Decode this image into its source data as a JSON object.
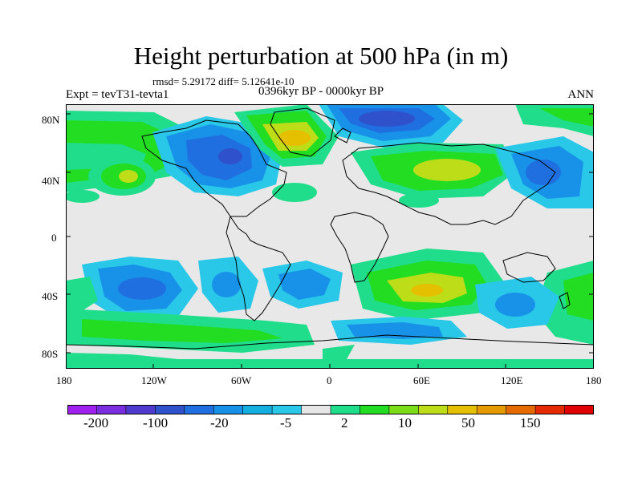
{
  "title": "Height perturbation at 500 hPa (in m)",
  "stats_line": "rmsd= 5.29172 diff= 5.12641e-10",
  "left_label": "Expt = tevT31-tevta1",
  "center_label": "0396kyr BP - 0000kyr BP",
  "right_label": "ANN",
  "map": {
    "projection": "cylindrical equidistant",
    "lat_ticks": [
      "80N",
      "40N",
      "0",
      "40S",
      "80S"
    ],
    "lon_ticks": [
      "180",
      "120W",
      "60W",
      "0",
      "60E",
      "120E",
      "180"
    ]
  },
  "colorbar": {
    "labels": [
      "-200",
      "-100",
      "-20",
      "-5",
      "2",
      "10",
      "50",
      "150"
    ],
    "colors": [
      "#a020f0",
      "#7b2de0",
      "#4f3ad0",
      "#2f52cc",
      "#1f6fe0",
      "#1892e8",
      "#14aee0",
      "#29c7e8",
      "#e6e6e6",
      "#1fdd8a",
      "#22dd22",
      "#7bdd19",
      "#bcdd18",
      "#e5c000",
      "#e59a00",
      "#e56a00",
      "#e52a00",
      "#e00000"
    ]
  }
}
